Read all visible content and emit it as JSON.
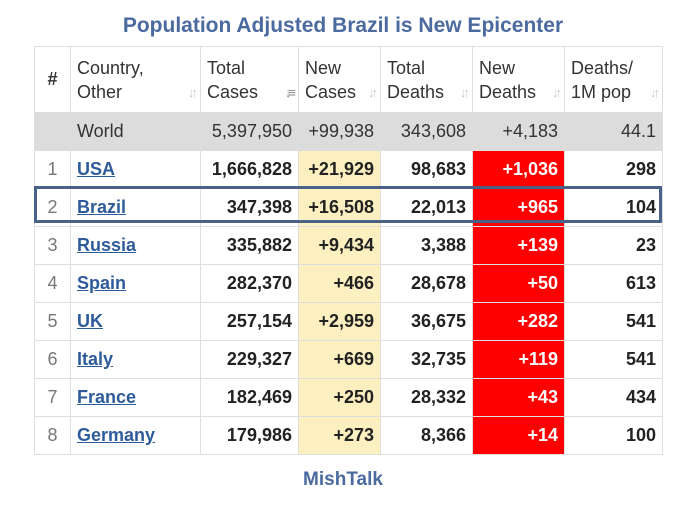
{
  "title": "Population Adjusted Brazil is New Epicenter",
  "footer": "MishTalk",
  "colors": {
    "title": "#4a6aa0",
    "highlight_border": "#4a6288",
    "new_deaths_bg": "#ff0000",
    "new_cases_bg": "#fcefc0",
    "world_row_bg": "#dcdcdc",
    "link": "#2e5b9a"
  },
  "headers": {
    "num": "#",
    "country": [
      "Country,",
      "Other"
    ],
    "total_cases": [
      "Total",
      "Cases"
    ],
    "new_cases": [
      "New",
      "Cases"
    ],
    "total_deaths": [
      "Total",
      "Deaths"
    ],
    "new_deaths": [
      "New",
      "Deaths"
    ],
    "deaths_per_m": [
      "Deaths/",
      "1M pop"
    ]
  },
  "world": {
    "name": "World",
    "total_cases": "5,397,950",
    "new_cases": "+99,938",
    "total_deaths": "343,608",
    "new_deaths": "+4,183",
    "deaths_per_m": "44.1"
  },
  "rows": [
    {
      "idx": "1",
      "country": "USA",
      "total_cases": "1,666,828",
      "new_cases": "+21,929",
      "total_deaths": "98,683",
      "new_deaths": "+1,036",
      "deaths_per_m": "298"
    },
    {
      "idx": "2",
      "country": "Brazil",
      "total_cases": "347,398",
      "new_cases": "+16,508",
      "total_deaths": "22,013",
      "new_deaths": "+965",
      "deaths_per_m": "104"
    },
    {
      "idx": "3",
      "country": "Russia",
      "total_cases": "335,882",
      "new_cases": "+9,434",
      "total_deaths": "3,388",
      "new_deaths": "+139",
      "deaths_per_m": "23"
    },
    {
      "idx": "4",
      "country": "Spain",
      "total_cases": "282,370",
      "new_cases": "+466",
      "total_deaths": "28,678",
      "new_deaths": "+50",
      "deaths_per_m": "613"
    },
    {
      "idx": "5",
      "country": "UK",
      "total_cases": "257,154",
      "new_cases": "+2,959",
      "total_deaths": "36,675",
      "new_deaths": "+282",
      "deaths_per_m": "541"
    },
    {
      "idx": "6",
      "country": "Italy",
      "total_cases": "229,327",
      "new_cases": "+669",
      "total_deaths": "32,735",
      "new_deaths": "+119",
      "deaths_per_m": "541"
    },
    {
      "idx": "7",
      "country": "France",
      "total_cases": "182,469",
      "new_cases": "+250",
      "total_deaths": "28,332",
      "new_deaths": "+43",
      "deaths_per_m": "434"
    },
    {
      "idx": "8",
      "country": "Germany",
      "total_cases": "179,986",
      "new_cases": "+273",
      "total_deaths": "8,366",
      "new_deaths": "+14",
      "deaths_per_m": "100"
    }
  ]
}
